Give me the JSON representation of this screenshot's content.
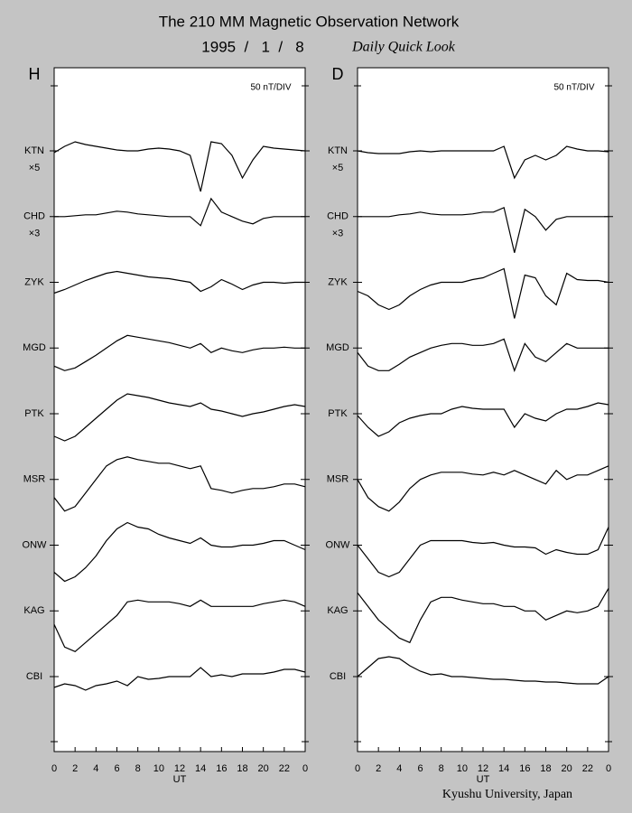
{
  "title": "The 210 MM Magnetic Observation Network",
  "date": "1995  /   1  /   8",
  "subtitle": "Daily Quick Look",
  "footer": "Kyushu University, Japan",
  "chart_data": [
    {
      "type": "line",
      "panel_label": "H",
      "scale_label": "50 nT/DIV",
      "x_label": "UT",
      "color": "#000000",
      "x": [
        0,
        1,
        2,
        3,
        4,
        5,
        6,
        7,
        8,
        9,
        10,
        11,
        12,
        13,
        14,
        15,
        16,
        17,
        18,
        19,
        20,
        21,
        22,
        23,
        24
      ],
      "xlim": [
        0,
        24
      ],
      "xticks": [
        0,
        2,
        4,
        6,
        8,
        10,
        12,
        14,
        16,
        18,
        20,
        22,
        {
          "value": 24,
          "label": "0"
        }
      ],
      "series": [
        {
          "name": "KTN",
          "multiplier": "×5",
          "values": [
            -2,
            5,
            10,
            7,
            5,
            3,
            1,
            0,
            0,
            2,
            3,
            2,
            0,
            -5,
            -45,
            10,
            8,
            -5,
            -30,
            -10,
            5,
            3,
            2,
            1,
            0
          ]
        },
        {
          "name": "CHD",
          "multiplier": "×3",
          "values": [
            0,
            0,
            1,
            2,
            2,
            4,
            6,
            5,
            3,
            2,
            1,
            0,
            0,
            0,
            -10,
            20,
            5,
            0,
            -5,
            -8,
            -2,
            0,
            0,
            0,
            0
          ]
        },
        {
          "name": "ZYK",
          "values": [
            -12,
            -8,
            -3,
            2,
            6,
            10,
            12,
            10,
            8,
            6,
            5,
            4,
            2,
            0,
            -10,
            -5,
            3,
            -2,
            -8,
            -3,
            0,
            0,
            -1,
            0,
            0
          ]
        },
        {
          "name": "MGD",
          "values": [
            -20,
            -25,
            -22,
            -15,
            -8,
            0,
            8,
            14,
            12,
            10,
            8,
            6,
            3,
            0,
            5,
            -5,
            0,
            -3,
            -5,
            -2,
            0,
            0,
            1,
            0,
            0
          ]
        },
        {
          "name": "PTK",
          "values": [
            -25,
            -30,
            -25,
            -15,
            -5,
            5,
            15,
            22,
            20,
            18,
            15,
            12,
            10,
            8,
            12,
            5,
            3,
            0,
            -3,
            0,
            2,
            5,
            8,
            10,
            8
          ]
        },
        {
          "name": "MSR",
          "values": [
            -20,
            -35,
            -30,
            -15,
            0,
            15,
            22,
            25,
            22,
            20,
            18,
            18,
            15,
            12,
            15,
            -10,
            -12,
            -15,
            -12,
            -10,
            -10,
            -8,
            -5,
            -5,
            -8
          ]
        },
        {
          "name": "ONW",
          "values": [
            -30,
            -40,
            -35,
            -25,
            -12,
            5,
            18,
            25,
            20,
            18,
            12,
            8,
            5,
            2,
            8,
            0,
            -2,
            -2,
            0,
            0,
            2,
            5,
            5,
            0,
            -5
          ]
        },
        {
          "name": "KAG",
          "values": [
            -15,
            -40,
            -45,
            -35,
            -25,
            -15,
            -5,
            10,
            12,
            10,
            10,
            10,
            8,
            5,
            12,
            5,
            5,
            5,
            5,
            5,
            8,
            10,
            12,
            10,
            5
          ]
        },
        {
          "name": "CBI",
          "values": [
            -12,
            -8,
            -10,
            -15,
            -10,
            -8,
            -5,
            -10,
            0,
            -3,
            -2,
            0,
            0,
            0,
            10,
            0,
            2,
            0,
            3,
            3,
            3,
            5,
            8,
            8,
            5
          ]
        }
      ]
    },
    {
      "type": "line",
      "panel_label": "D",
      "scale_label": "50 nT/DIV",
      "x_label": "UT",
      "color": "#000000",
      "x": [
        0,
        1,
        2,
        3,
        4,
        5,
        6,
        7,
        8,
        9,
        10,
        11,
        12,
        13,
        14,
        15,
        16,
        17,
        18,
        19,
        20,
        21,
        22,
        23,
        24
      ],
      "xlim": [
        0,
        24
      ],
      "xticks": [
        0,
        2,
        4,
        6,
        8,
        10,
        12,
        14,
        16,
        18,
        20,
        22,
        {
          "value": 24,
          "label": "0"
        }
      ],
      "series": [
        {
          "name": "KTN",
          "multiplier": "×5",
          "values": [
            0,
            -2,
            -3,
            -3,
            -3,
            -1,
            0,
            -1,
            0,
            0,
            0,
            0,
            0,
            0,
            5,
            -30,
            -10,
            -5,
            -10,
            -5,
            5,
            2,
            0,
            0,
            -1
          ]
        },
        {
          "name": "CHD",
          "multiplier": "×3",
          "values": [
            0,
            0,
            0,
            0,
            2,
            3,
            5,
            3,
            2,
            2,
            2,
            3,
            5,
            5,
            10,
            -40,
            8,
            0,
            -15,
            -3,
            0,
            0,
            0,
            0,
            0
          ]
        },
        {
          "name": "ZYK",
          "values": [
            -10,
            -15,
            -25,
            -30,
            -25,
            -15,
            -8,
            -3,
            0,
            0,
            0,
            3,
            5,
            10,
            15,
            -40,
            8,
            5,
            -15,
            -25,
            10,
            3,
            2,
            2,
            0
          ]
        },
        {
          "name": "MGD",
          "values": [
            -5,
            -20,
            -25,
            -25,
            -18,
            -10,
            -5,
            0,
            3,
            5,
            5,
            3,
            3,
            5,
            10,
            -25,
            5,
            -10,
            -15,
            -5,
            5,
            0,
            0,
            0,
            0
          ]
        },
        {
          "name": "PTK",
          "values": [
            -2,
            -15,
            -25,
            -20,
            -10,
            -5,
            -2,
            0,
            0,
            5,
            8,
            6,
            5,
            5,
            5,
            -15,
            0,
            -5,
            -8,
            0,
            5,
            5,
            8,
            12,
            10
          ]
        },
        {
          "name": "MSR",
          "values": [
            0,
            -20,
            -30,
            -35,
            -25,
            -10,
            0,
            5,
            8,
            8,
            8,
            6,
            5,
            8,
            5,
            10,
            5,
            0,
            -5,
            10,
            0,
            5,
            5,
            10,
            15
          ]
        },
        {
          "name": "ONW",
          "values": [
            0,
            -15,
            -30,
            -35,
            -30,
            -15,
            0,
            5,
            5,
            5,
            5,
            3,
            2,
            3,
            0,
            -2,
            -2,
            -3,
            -10,
            -5,
            -8,
            -10,
            -10,
            -5,
            20
          ]
        },
        {
          "name": "KAG",
          "values": [
            20,
            5,
            -10,
            -20,
            -30,
            -35,
            -10,
            10,
            15,
            15,
            12,
            10,
            8,
            8,
            5,
            5,
            0,
            0,
            -10,
            -5,
            0,
            -2,
            0,
            5,
            25
          ]
        },
        {
          "name": "CBI",
          "values": [
            0,
            10,
            20,
            22,
            20,
            12,
            6,
            2,
            3,
            0,
            0,
            -1,
            -2,
            -3,
            -3,
            -4,
            -5,
            -5,
            -6,
            -6,
            -7,
            -8,
            -8,
            -8,
            0
          ]
        }
      ]
    }
  ]
}
